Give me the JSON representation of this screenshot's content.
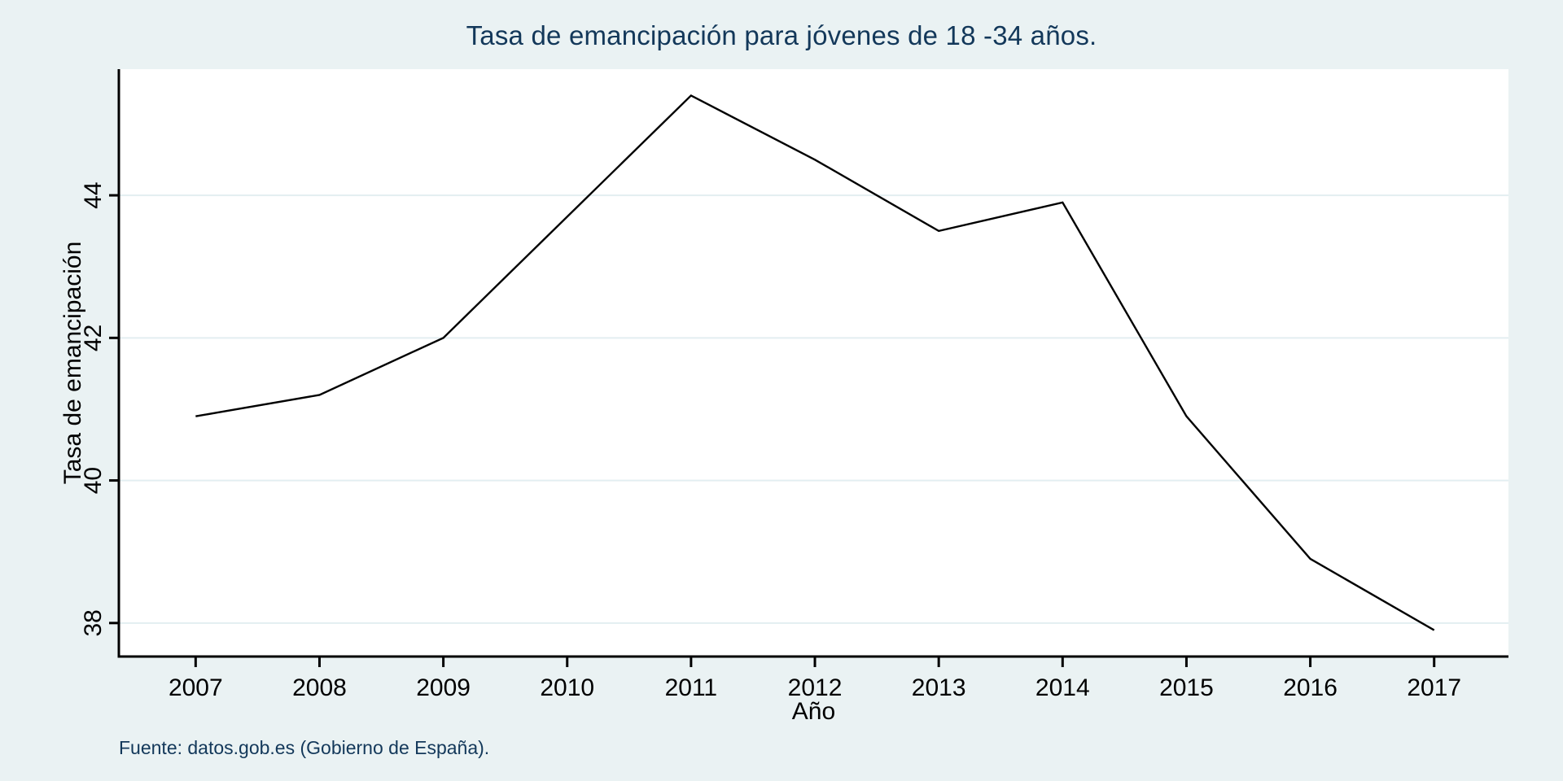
{
  "figure": {
    "source_note": "Fuente: datos.gob.es (Gobierno de España).",
    "colors": {
      "background": "#eaf2f3",
      "plot_background": "#ffffff",
      "title_color": "#13385a",
      "source_color": "#13385a",
      "axis_color": "#000000",
      "line_color": "#000000",
      "grid_color": "#e3eef1",
      "tick_label_color": "#000000"
    }
  },
  "chart_data": {
    "type": "line",
    "title": "Tasa de emancipación para jóvenes de 18 -34 años.",
    "xlabel": "Año",
    "ylabel": "Tasa de emancipación",
    "series_name": "Tasa de emancipación",
    "x": [
      2007,
      2008,
      2009,
      2010,
      2011,
      2012,
      2013,
      2014,
      2015,
      2016,
      2017
    ],
    "values": [
      40.9,
      41.2,
      42.0,
      43.7,
      45.4,
      44.5,
      43.5,
      43.9,
      40.9,
      38.9,
      37.9
    ],
    "x_ticks": [
      2007,
      2008,
      2009,
      2010,
      2011,
      2012,
      2013,
      2014,
      2015,
      2016,
      2017
    ],
    "y_ticks": [
      38,
      40,
      42,
      44
    ],
    "xlim": [
      2006.38,
      2017.6
    ],
    "ylim": [
      37.53,
      45.77
    ],
    "grid": "horizontal-only",
    "legend": "none"
  }
}
